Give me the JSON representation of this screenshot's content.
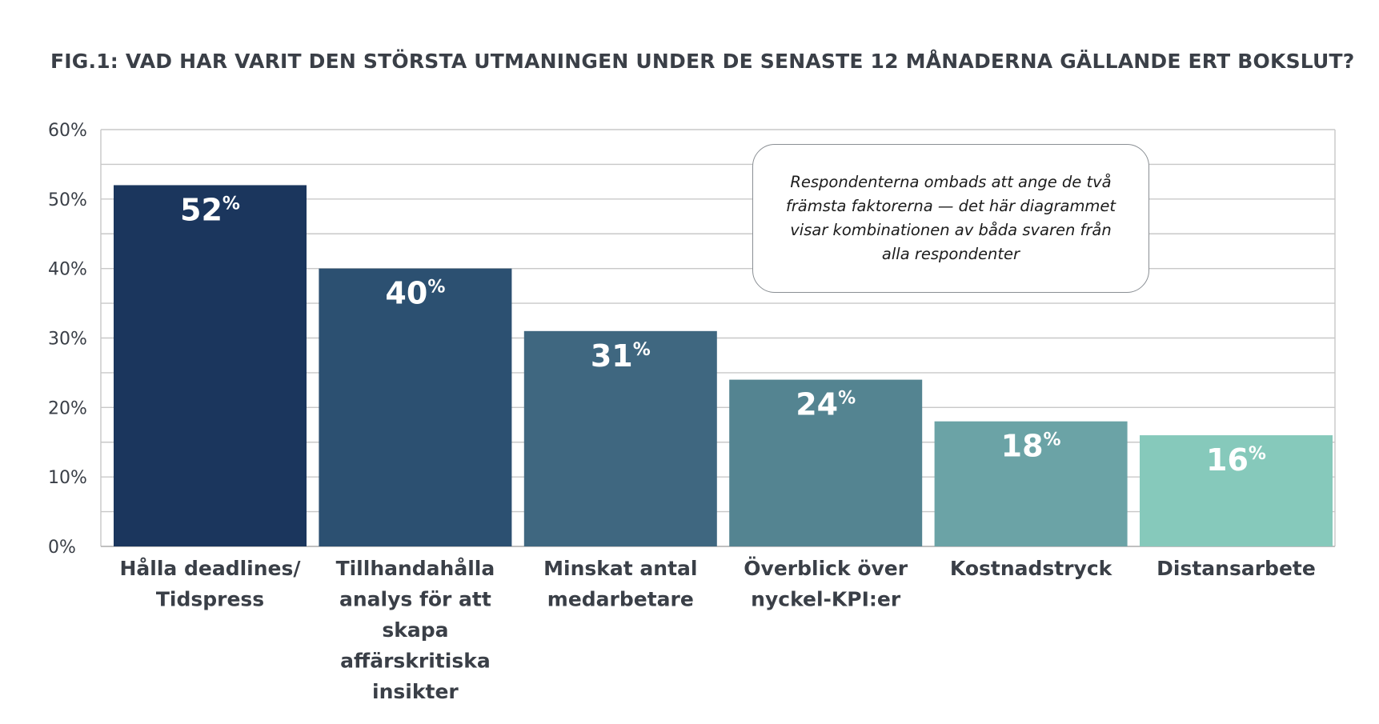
{
  "title": "FIG.1: VAD HAR VARIT DEN STÖRSTA UTMANINGEN UNDER DE SENASTE 12 MÅNADERNA GÄLLANDE ERT BOKSLUT?",
  "note": "Respondenterna ombads att ange de två främsta faktorerna — det här diagrammet visar kombinationen av båda svaren från alla respondenter",
  "colors": {
    "bars": [
      "#1b365d",
      "#2c5071",
      "#3f6780",
      "#548491",
      "#6ba3a6",
      "#86c9bb"
    ],
    "grid": "#c8c8c8",
    "axis_text": "#3a3f47",
    "label_text": "#ffffff"
  },
  "chart_data": {
    "type": "bar",
    "categories": [
      [
        "Hålla deadlines/",
        "Tidspress"
      ],
      [
        "Tillhandahålla",
        "analys för att",
        "skapa",
        "affärskritiska",
        "insikter"
      ],
      [
        "Minskat antal",
        "medarbetare"
      ],
      [
        "Överblick över",
        "nyckel-KPI:er"
      ],
      [
        "Kostnadstryck"
      ],
      [
        "Distansarbete"
      ]
    ],
    "values": [
      52,
      40,
      31,
      24,
      18,
      16
    ],
    "value_labels": [
      "52",
      "40",
      "31",
      "24",
      "18",
      "16"
    ],
    "value_suffix": "%",
    "yticks": [
      "0%",
      "10%",
      "20%",
      "30%",
      "40%",
      "50%",
      "60%"
    ],
    "ylim": [
      0,
      60
    ],
    "minor_grid_step": 5,
    "grid": true,
    "legend": "none"
  }
}
